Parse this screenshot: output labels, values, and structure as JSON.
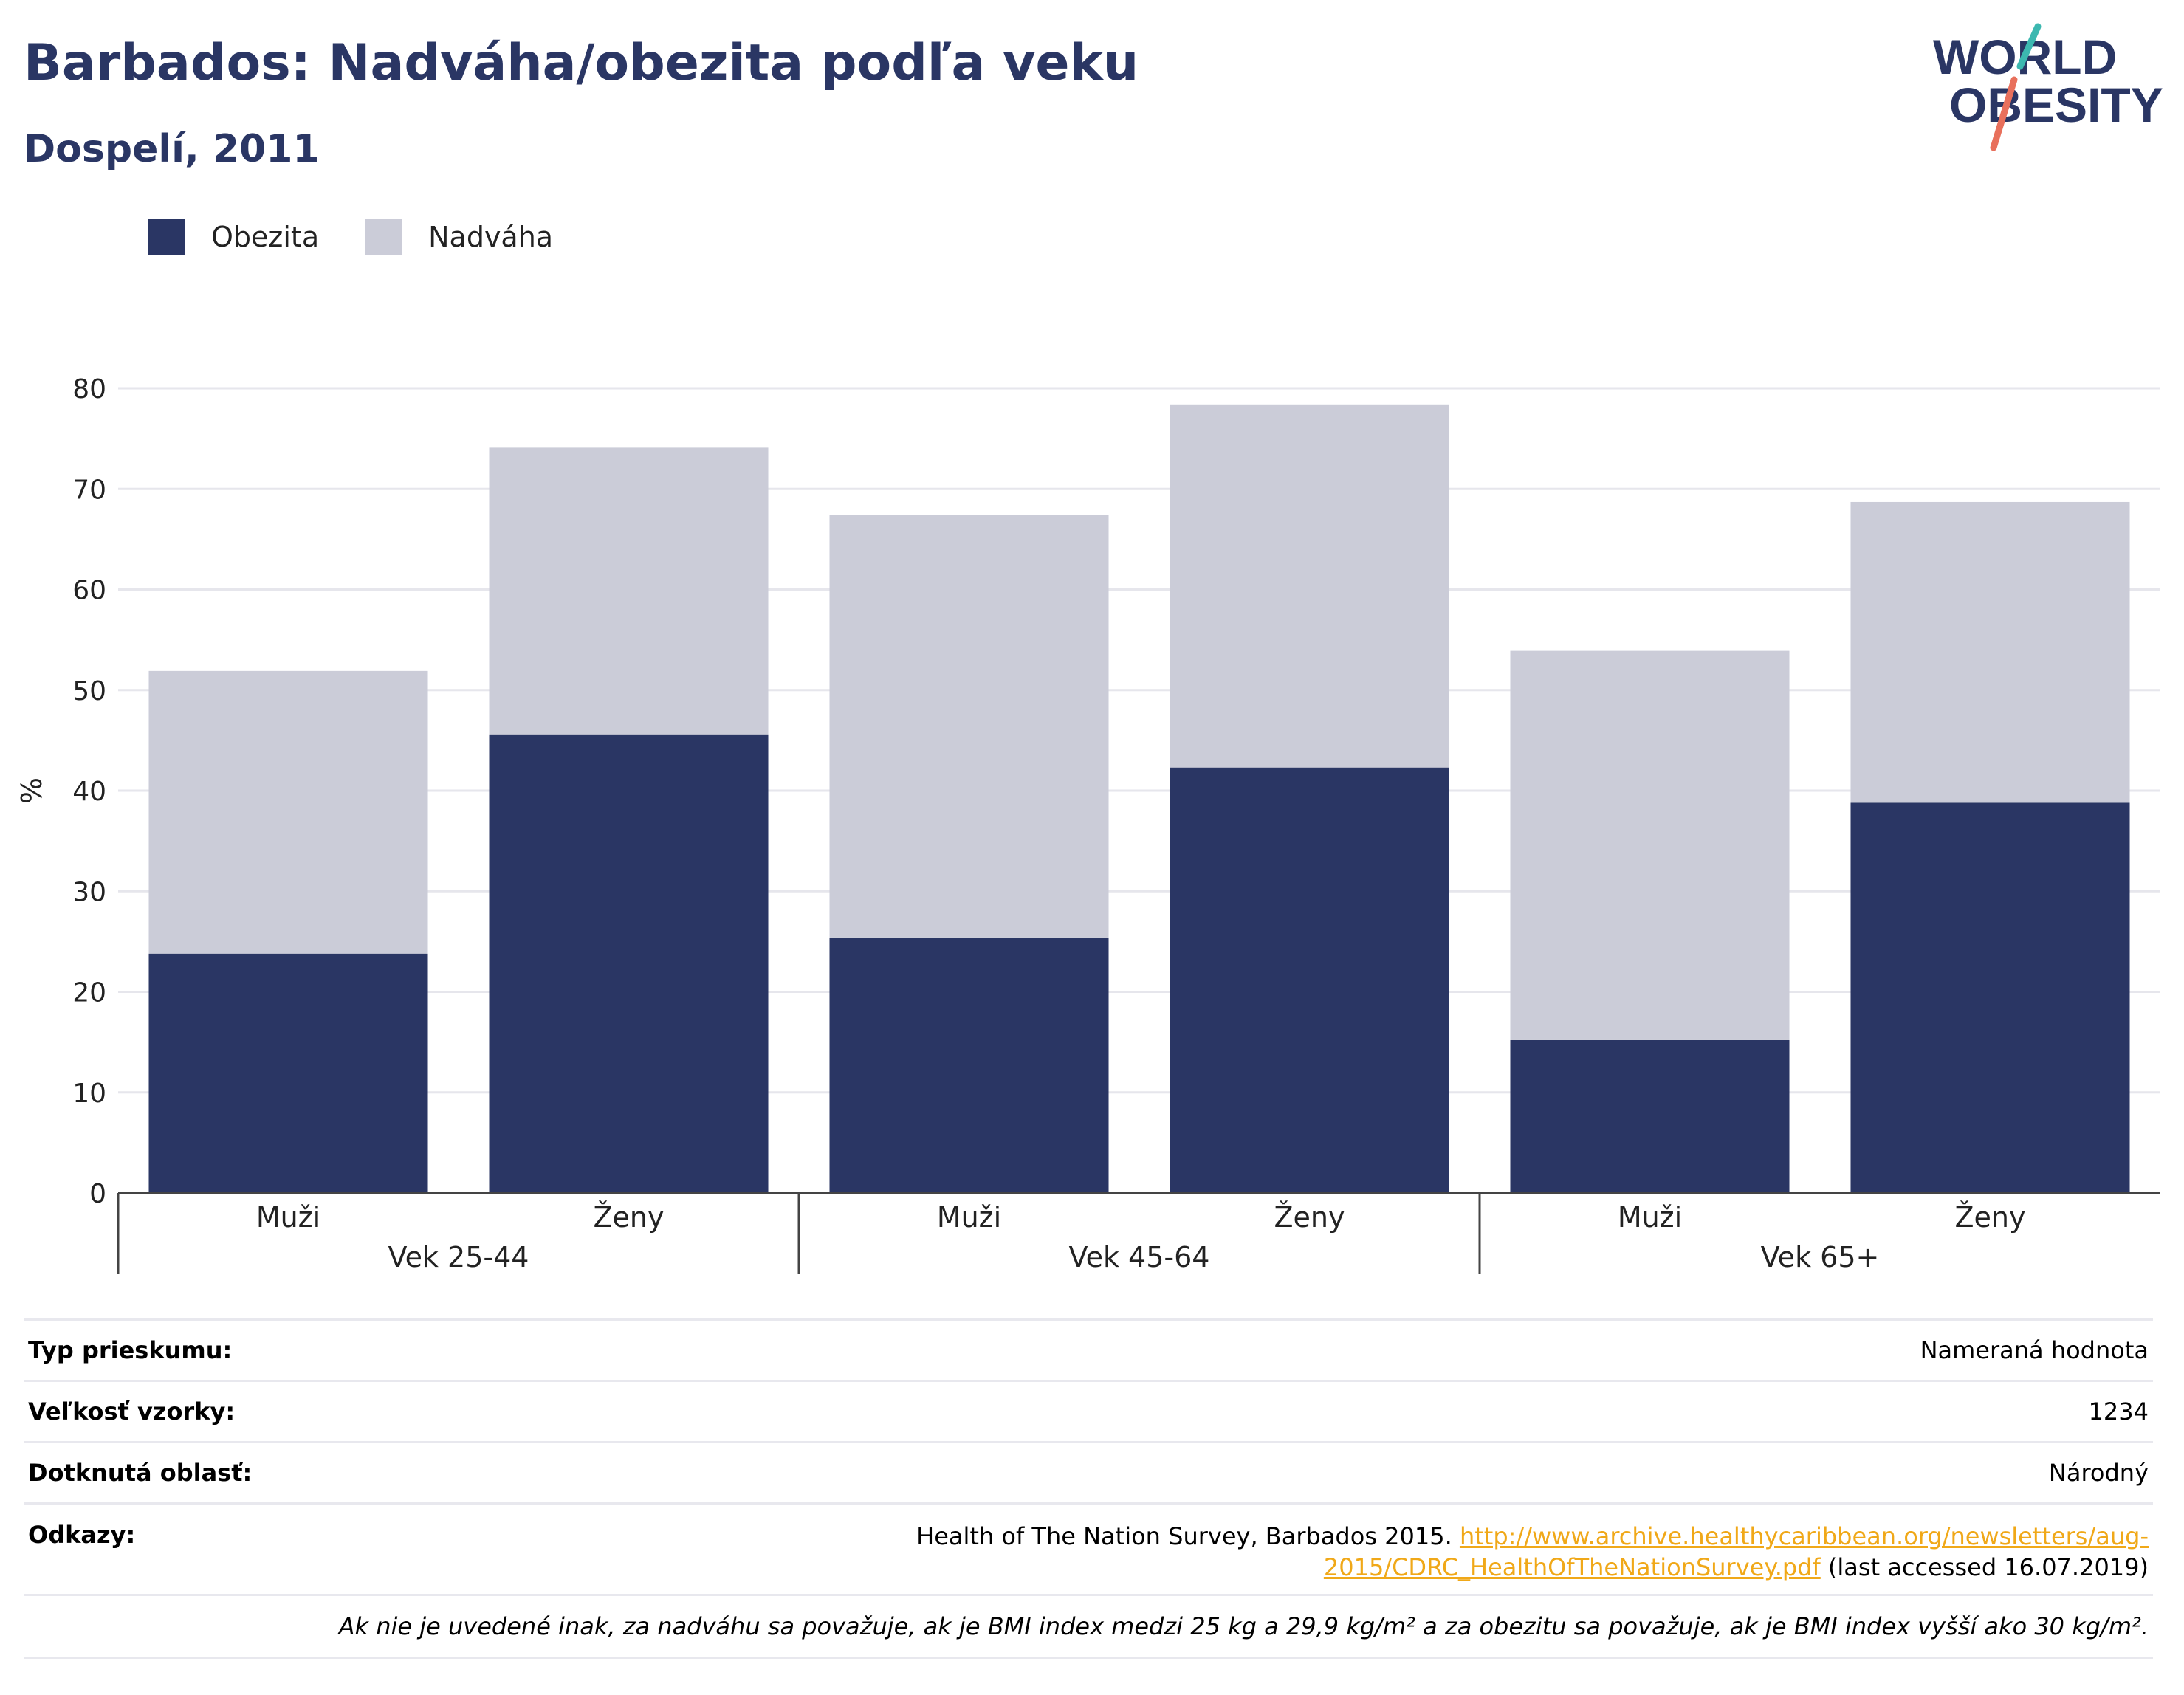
{
  "header": {
    "title": "Barbados: Nadváha/obezita podľa veku",
    "subtitle": "Dospelí, 2011"
  },
  "logo": {
    "line1": "WORLD",
    "line2": "OBESITY"
  },
  "colors": {
    "obesity": "#2a3664",
    "overweight": "#cbccd8",
    "title": "#2a3664",
    "link": "#f0a818"
  },
  "chart_data": {
    "type": "bar",
    "stacked": true,
    "categories": [
      "Muži",
      "Ženy",
      "Muži",
      "Ženy",
      "Muži",
      "Ženy"
    ],
    "groups": [
      {
        "label": "Vek 25-44",
        "count": 2
      },
      {
        "label": "Vek 45-64",
        "count": 2
      },
      {
        "label": "Vek 65+",
        "count": 2
      }
    ],
    "series": [
      {
        "name": "Obezita",
        "color": "#2a3664",
        "values": [
          23.8,
          45.6,
          25.4,
          42.3,
          15.2,
          38.8
        ]
      },
      {
        "name": "Nadváha",
        "color": "#cbccd8",
        "values": [
          28.1,
          28.5,
          42.0,
          36.1,
          38.7,
          29.9
        ]
      }
    ],
    "totals": [
      51.9,
      74.1,
      67.4,
      78.4,
      53.9,
      68.7
    ],
    "ylabel": "%",
    "ylim": [
      0,
      80
    ],
    "yticks": [
      0,
      10,
      20,
      30,
      40,
      50,
      60,
      70,
      80
    ],
    "grid": true,
    "legend": "top-left"
  },
  "info": {
    "survey_type": {
      "label": "Typ prieskumu:",
      "value": "Nameraná hodnota"
    },
    "sample_size": {
      "label": "Veľkosť vzorky:",
      "value": "1234"
    },
    "area": {
      "label": "Dotknutá oblasť:",
      "value": "Národný"
    },
    "references": {
      "label": "Odkazy:",
      "text": "Health of The Nation Survey, Barbados 2015.",
      "link_line1": "http://www.archive.healthycaribbean.org/newsletters/aug-",
      "link_line2": "2015/CDRC_HealthOfTheNationSurvey.pdf",
      "suffix": "(last accessed 16.07.2019)"
    },
    "note": "Ak nie je uvedené inak, za nadváhu sa považuje, ak je BMI index medzi 25 kg a 29,9 kg/m² a za obezitu sa považuje, ak je BMI index vyšší ako 30 kg/m²."
  }
}
